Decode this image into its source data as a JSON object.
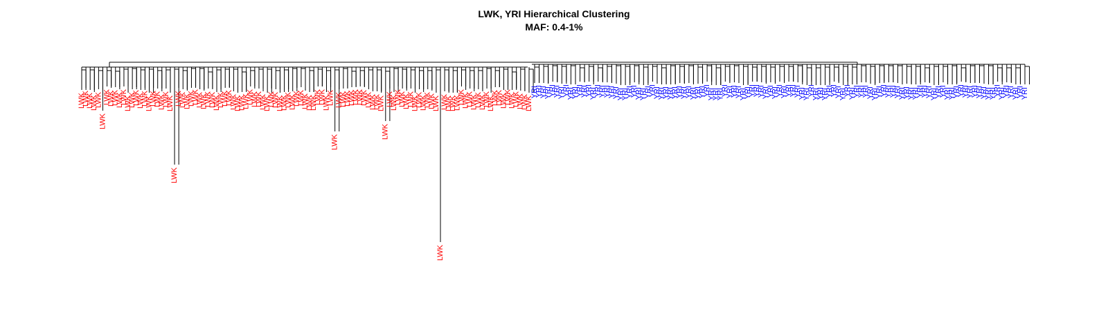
{
  "header": {
    "title": "LWK, YRI Hierarchical Clustering",
    "subtitle": "MAF: 0.4-1%"
  },
  "colors": {
    "LWK": "#ff0000",
    "YRI": "#0000ff",
    "branch": "#000000"
  },
  "dendrogram": {
    "populations": [
      "LWK",
      "YRI"
    ],
    "leaf_counts": {
      "LWK": 107,
      "YRI": 109
    },
    "outlier_leaf_height_levels": [
      1.0,
      0.9,
      0.85,
      0.82
    ]
  }
}
